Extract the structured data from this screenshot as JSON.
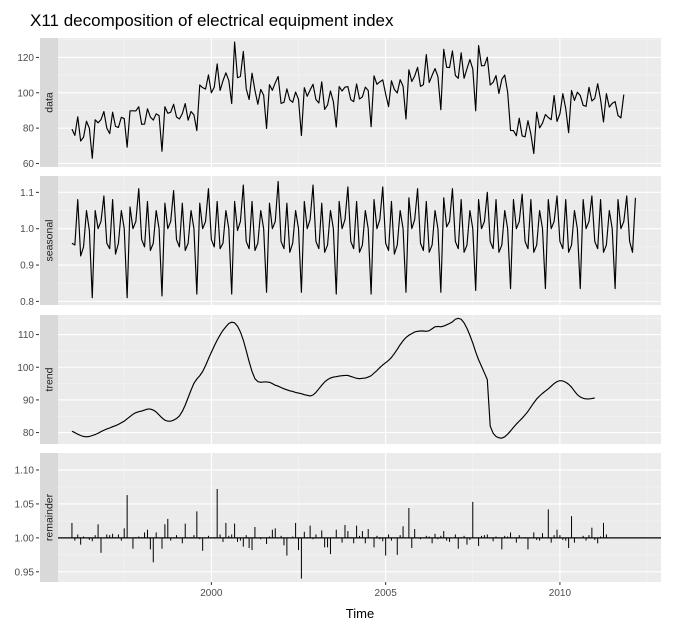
{
  "chart_data": {
    "type": "line",
    "title": "X11 decomposition of electrical equipment index",
    "xlabel": "Time",
    "x_start": 1996.0,
    "x_frequency": 12,
    "xlim": [
      1995.6,
      2012.9
    ],
    "x_ticks": [
      2000,
      2005,
      2010
    ],
    "x_tick_labels": [
      "2000",
      "2005",
      "2010"
    ],
    "grid": true,
    "panels": [
      {
        "name": "data",
        "ylim": [
          58,
          131
        ],
        "y_ticks": [
          60,
          80,
          100,
          120
        ],
        "y_tick_labels": [
          "60",
          "80",
          "100",
          "120"
        ],
        "values": [
          79.4,
          75.9,
          86.4,
          72.7,
          74.9,
          83.9,
          79.9,
          62.9,
          84.7,
          83.0,
          84.8,
          89.4,
          80.0,
          76.9,
          89.0,
          81.0,
          80.4,
          86.1,
          85.4,
          69.2,
          89.8,
          89.8,
          89.7,
          92.1,
          82.2,
          82.3,
          90.9,
          86.3,
          84.5,
          88.1,
          87.1,
          66.9,
          92.1,
          88.4,
          89.0,
          93.5,
          86.3,
          85.2,
          88.2,
          93.9,
          84.5,
          89.4,
          87.5,
          78.6,
          104.4,
          102.9,
          102.1,
          110.1,
          100.0,
          103.2,
          116.3,
          101.3,
          106.8,
          111.3,
          107.0,
          93.9,
          128.7,
          108.5,
          109.2,
          123.4,
          102.3,
          96.2,
          111.1,
          101.4,
          93.5,
          101.9,
          98.7,
          79.8,
          104.6,
          101.4,
          105.7,
          109.2,
          94.0,
          94.6,
          102.2,
          96.0,
          94.6,
          100.4,
          96.3,
          75.8,
          102.9,
          98.0,
          101.6,
          104.8,
          96.2,
          94.2,
          106.2,
          90.6,
          93.1,
          101.0,
          95.0,
          80.6,
          103.5,
          101.0,
          103.2,
          103.5,
          96.1,
          95.0,
          105.0,
          96.5,
          97.7,
          103.2,
          101.3,
          80.8,
          109.6,
          104.8,
          106.2,
          107.3,
          99.3,
          92.2,
          106.8,
          101.9,
          99.9,
          107.4,
          103.7,
          85.1,
          113.0,
          106.4,
          109.5,
          114.4,
          103.6,
          104.6,
          121.6,
          105.8,
          109.9,
          113.7,
          109.2,
          90.4,
          124.6,
          114.4,
          114.3,
          123.7,
          109.8,
          108.2,
          122.6,
          108.2,
          113.6,
          118.8,
          113.5,
          89.8,
          126.7,
          115.3,
          115.4,
          120.1,
          104.4,
          105.9,
          109.7,
          99.6,
          107.6,
          110.0,
          100.4,
          78.7,
          78.6,
          75.7,
          85.6,
          75.6,
          75.1,
          84.2,
          76.6,
          65.6,
          89.0,
          80.1,
          82.8,
          87.7,
          86.0,
          84.8,
          98.4,
          83.8,
          88.1,
          99.5,
          91.1,
          77.4,
          101.3,
          95.7,
          100.3,
          98.5,
          92.9,
          92.3,
          103.1,
          95.4,
          96.8,
          105.1,
          96.2,
          83.5,
          99.5,
          91.9,
          94.0,
          95.0,
          87.1,
          85.8,
          99.0
        ]
      },
      {
        "name": "seasonal",
        "ylim": [
          0.79,
          1.145
        ],
        "y_ticks": [
          0.8,
          0.9,
          1.0,
          1.1
        ],
        "y_tick_labels": [
          "0.8",
          "0.9",
          "1.0",
          "1.1"
        ],
        "values": [
          0.96,
          0.955,
          1.08,
          0.925,
          0.95,
          1.05,
          0.995,
          0.81,
          1.05,
          1.0,
          1.02,
          1.09,
          0.96,
          0.945,
          1.08,
          0.93,
          0.96,
          1.05,
          1.0,
          0.81,
          1.06,
          1.0,
          1.02,
          1.11,
          0.97,
          0.95,
          1.075,
          0.94,
          0.96,
          1.05,
          1.0,
          0.815,
          1.07,
          1.0,
          1.02,
          1.105,
          0.97,
          0.95,
          1.07,
          0.94,
          0.96,
          1.05,
          1.0,
          0.82,
          1.07,
          1.0,
          1.02,
          1.11,
          0.97,
          0.95,
          1.075,
          0.945,
          0.96,
          1.05,
          1.0,
          0.82,
          1.075,
          0.995,
          1.02,
          1.12,
          0.965,
          0.945,
          1.075,
          0.94,
          0.96,
          1.05,
          1.0,
          0.825,
          1.07,
          1.0,
          1.02,
          1.13,
          0.965,
          0.945,
          1.07,
          0.935,
          0.96,
          1.05,
          1.0,
          0.825,
          1.075,
          1.0,
          1.025,
          1.12,
          0.965,
          0.945,
          1.07,
          0.935,
          0.955,
          1.05,
          1.0,
          0.82,
          1.075,
          1.0,
          1.025,
          1.115,
          0.965,
          0.945,
          1.075,
          0.935,
          0.955,
          1.05,
          1.0,
          0.82,
          1.08,
          1.0,
          1.025,
          1.115,
          0.96,
          0.94,
          1.075,
          0.93,
          0.955,
          1.05,
          1.0,
          0.825,
          1.085,
          1.0,
          1.025,
          1.11,
          0.96,
          0.94,
          1.075,
          0.935,
          0.955,
          1.05,
          1.0,
          0.825,
          1.085,
          1.005,
          1.02,
          1.11,
          0.965,
          0.945,
          1.08,
          0.935,
          0.955,
          1.05,
          1.0,
          0.83,
          1.08,
          1.0,
          1.02,
          1.1,
          0.965,
          0.945,
          1.08,
          0.935,
          0.955,
          1.05,
          1.0,
          0.835,
          1.08,
          1.0,
          1.02,
          1.095,
          0.965,
          0.945,
          1.08,
          0.935,
          0.955,
          1.05,
          1.0,
          0.835,
          1.08,
          1.0,
          1.02,
          1.09,
          0.965,
          0.945,
          1.08,
          0.935,
          0.955,
          1.05,
          1.0,
          0.835,
          1.08,
          1.0,
          1.02,
          1.09,
          0.965,
          0.945,
          1.08,
          0.935,
          0.955,
          1.05,
          1.0,
          0.835,
          1.08,
          1.0,
          1.02,
          1.09,
          0.965,
          0.935,
          1.085
        ]
      },
      {
        "name": "trend",
        "ylim": [
          76.5,
          116
        ],
        "y_ticks": [
          80,
          90,
          100,
          110
        ],
        "y_tick_labels": [
          "80",
          "90",
          "100",
          "110"
        ],
        "values": [
          80.4,
          80.0,
          79.5,
          79.1,
          78.8,
          78.7,
          78.8,
          79.1,
          79.4,
          79.8,
          80.3,
          80.7,
          81.1,
          81.4,
          81.8,
          82.1,
          82.5,
          83.0,
          83.5,
          84.2,
          84.9,
          85.6,
          86.1,
          86.4,
          86.6,
          86.9,
          87.2,
          87.2,
          86.9,
          86.3,
          85.4,
          84.5,
          83.8,
          83.5,
          83.5,
          83.8,
          84.3,
          85.1,
          86.5,
          88.4,
          90.7,
          93.0,
          95.1,
          96.4,
          97.4,
          98.7,
          100.5,
          102.6,
          104.6,
          106.5,
          108.3,
          109.9,
          111.3,
          112.4,
          113.4,
          113.8,
          113.6,
          112.6,
          110.8,
          108.3,
          105.1,
          101.7,
          98.7,
          96.5,
          95.6,
          95.4,
          95.5,
          95.5,
          95.4,
          95.0,
          94.5,
          94.2,
          93.8,
          93.4,
          93.1,
          92.8,
          92.6,
          92.3,
          92.1,
          91.9,
          91.6,
          91.4,
          91.2,
          91.5,
          92.3,
          93.4,
          94.5,
          95.5,
          96.2,
          96.7,
          97.0,
          97.1,
          97.3,
          97.4,
          97.5,
          97.5,
          97.2,
          96.9,
          96.6,
          96.5,
          96.6,
          96.7,
          97.0,
          97.4,
          98.2,
          99.0,
          99.9,
          100.7,
          101.4,
          102.1,
          103.0,
          104.2,
          105.5,
          106.9,
          108.1,
          109.1,
          109.8,
          110.3,
          110.8,
          111.0,
          111.1,
          111.1,
          111.0,
          111.2,
          111.8,
          112.4,
          112.5,
          112.4,
          112.6,
          113.0,
          113.4,
          113.9,
          114.7,
          115.0,
          114.7,
          113.6,
          111.9,
          109.8,
          107.4,
          104.7,
          102.3,
          100.3,
          98.3,
          96.2,
          82.0,
          79.8,
          78.8,
          78.4,
          78.3,
          78.7,
          79.5,
          80.5,
          81.6,
          82.6,
          83.5,
          84.4,
          85.4,
          86.5,
          87.8,
          89.1,
          90.3,
          91.2,
          92.0,
          92.7,
          93.4,
          94.2,
          95.0,
          95.6,
          95.9,
          95.8,
          95.4,
          94.8,
          93.9,
          92.7,
          91.6,
          90.9,
          90.5,
          90.3,
          90.3,
          90.4,
          90.6
        ]
      },
      {
        "name": "remainder",
        "ylim": [
          0.935,
          1.125
        ],
        "y_ticks": [
          0.95,
          1.0,
          1.05,
          1.1
        ],
        "y_tick_labels": [
          "0.95",
          "1.00",
          "1.05",
          "1.10"
        ],
        "values": [
          1.022,
          0.996,
          1.005,
          0.99,
          1.002,
          1.0,
          0.997,
          0.995,
          1.004,
          1.02,
          0.978,
          1.0,
          1.005,
          1.004,
          1.006,
          1.001,
          1.005,
          0.996,
          1.014,
          1.063,
          1.0,
          0.984,
          1.001,
          1.002,
          1.001,
          1.008,
          1.012,
          0.983,
          0.964,
          1.008,
          1.0,
          0.984,
          1.02,
          1.028,
          0.996,
          1.0,
          1.004,
          0.999,
          0.992,
          1.021,
          1.0,
          1.001,
          1.004,
          1.039,
          0.998,
          0.981,
          0.999,
          1.003,
          0.999,
          1.001,
          1.072,
          1.005,
          0.994,
          1.022,
          1.003,
          1.005,
          1.021,
          0.994,
          0.996,
          0.987,
          1.004,
          0.985,
          0.982,
          1.016,
          1.0,
          0.998,
          1.0,
          0.991,
          1.002,
          1.012,
          1.014,
          0.999,
          1.003,
          0.989,
          0.974,
          1.0,
          1.002,
          1.022,
          0.982,
          0.94,
          1.009,
          1.001,
          1.018,
          0.998,
          1.005,
          1.0,
          1.011,
          0.986,
          0.986,
          0.976,
          0.999,
          1.012,
          1.0,
          0.993,
          1.019,
          1.01,
          1.001,
          0.992,
          1.018,
          1.003,
          1.01,
          0.992,
          1.013,
          1.0,
          0.986,
          1.003,
          0.998,
          0.995,
          0.974,
          1.005,
          0.996,
          1.0,
          0.975,
          1.004,
          1.017,
          1.0,
          1.044,
          0.985,
          1.013,
          1.0,
          0.998,
          1.0,
          1.003,
          1.002,
          0.992,
          1.006,
          0.998,
          1.003,
          1.01,
          0.996,
          0.994,
          1.0,
          1.005,
          0.984,
          1.001,
          1.003,
          0.99,
          0.997,
          1.053,
          1.0,
          0.988,
          1.003,
          1.004,
          1.005,
          0.999,
          0.995,
          1.002,
          0.999,
          0.983,
          1.003,
          1.002,
          1.008,
          1.0,
          0.993,
          1.004,
          1.0,
          1.001,
          0.983,
          1.0,
          1.008,
          0.997,
          0.996,
          1.007,
          1.0,
          1.042,
          0.993,
          1.004,
          1.012,
          1.004,
          0.997,
          0.996,
          0.985,
          1.032,
          0.993,
          1.0,
          1.0,
          1.003,
          0.996,
          1.004,
          1.015,
          0.997,
          0.992,
          1.002,
          1.022,
          1.005
        ]
      }
    ]
  }
}
